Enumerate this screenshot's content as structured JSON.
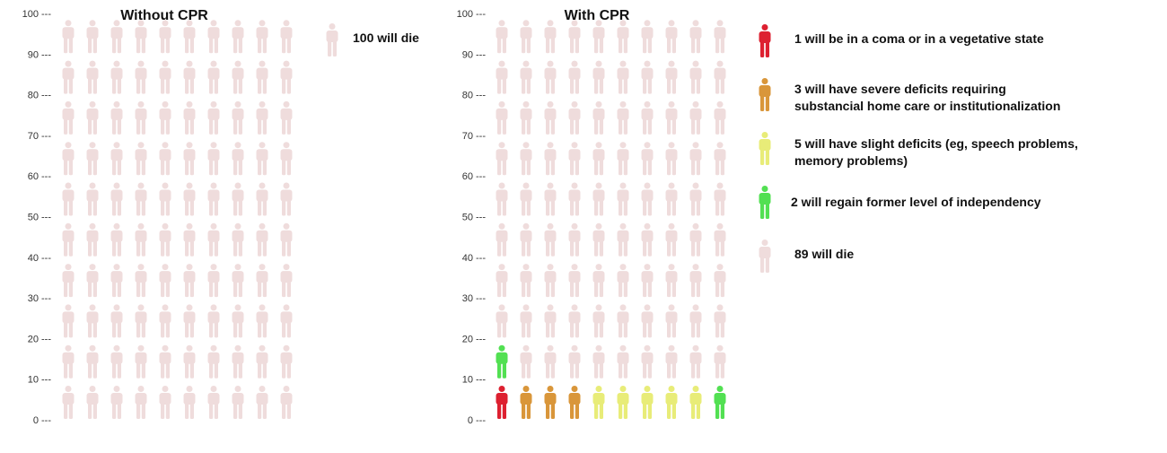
{
  "chart_data": [
    {
      "type": "pictogram",
      "title": "Without CPR",
      "y_ticks": [
        "0 ---",
        "10 ---",
        "20 ---",
        "30 ---",
        "40 ---",
        "50 ---",
        "60 ---",
        "70 ---",
        "80 ---",
        "90 ---",
        "100 ---"
      ],
      "ylim": [
        0,
        100
      ],
      "grid": "10x10",
      "series": [
        {
          "name": "100 will die",
          "count": 100,
          "color": "#efdcdc"
        }
      ]
    },
    {
      "type": "pictogram",
      "title": "With CPR",
      "y_ticks": [
        "0 ---",
        "10 ---",
        "20 ---",
        "30 ---",
        "40 ---",
        "50 ---",
        "60 ---",
        "70 ---",
        "80 ---",
        "90 ---",
        "100 ---"
      ],
      "ylim": [
        0,
        100
      ],
      "grid": "10x10",
      "series": [
        {
          "name": "1 will be in a coma or in a vegetative state",
          "count": 1,
          "color": "#dd2030"
        },
        {
          "name": "3 will have severe deficits requiring substancial home care or institutionalization",
          "count": 3,
          "color": "#d9963a"
        },
        {
          "name": "5 will have slight deficits (eg, speech problems, memory problems)",
          "count": 5,
          "color": "#e8ec78"
        },
        {
          "name": "2 will regain former level of independency",
          "count": 2,
          "color": "#52e052"
        },
        {
          "name": "89 will die",
          "count": 89,
          "color": "#efdcdc"
        }
      ]
    }
  ],
  "legend_without": {
    "label": "100 will die"
  },
  "legend_with": {
    "coma_line1": "1 will be in a coma or in a vegetative state",
    "severe_line1": "3 will have severe deficits requiring",
    "severe_line2": "substancial home care or institutionalization",
    "slight_line1": "5 will have slight deficits (eg, speech problems,",
    "slight_line2": "memory problems)",
    "regain_line1": "2  will regain former level of independency",
    "die_line1": "89 will die"
  }
}
